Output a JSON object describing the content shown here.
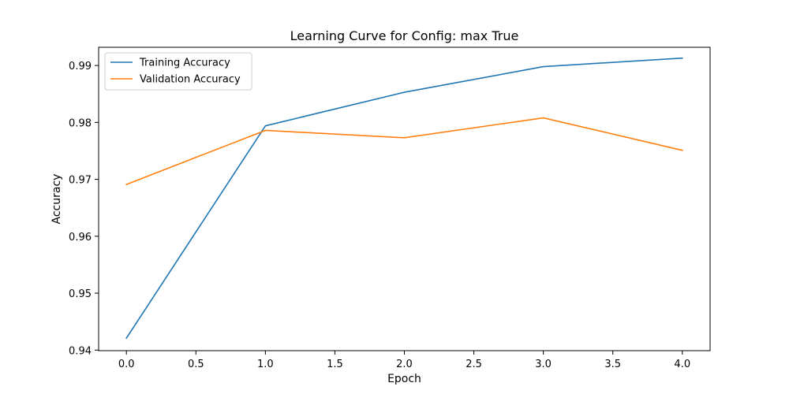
{
  "chart_data": {
    "type": "line",
    "title": "Learning Curve for Config: max True",
    "xlabel": "Epoch",
    "ylabel": "Accuracy",
    "x": [
      0,
      1,
      2,
      3,
      4
    ],
    "xlim": [
      -0.2,
      4.2
    ],
    "ylim": [
      0.9399,
      0.9932
    ],
    "xticks": [
      0.0,
      0.5,
      1.0,
      1.5,
      2.0,
      2.5,
      3.0,
      3.5,
      4.0
    ],
    "xtick_labels": [
      "0.0",
      "0.5",
      "1.0",
      "1.5",
      "2.0",
      "2.5",
      "3.0",
      "3.5",
      "4.0"
    ],
    "yticks": [
      0.94,
      0.95,
      0.96,
      0.97,
      0.98,
      0.99
    ],
    "ytick_labels": [
      "0.94",
      "0.95",
      "0.96",
      "0.97",
      "0.98",
      "0.99"
    ],
    "grid": false,
    "legend_position": "top-left",
    "series": [
      {
        "name": "Training Accuracy",
        "color": "#1f77b4",
        "values": [
          0.9421,
          0.9794,
          0.9853,
          0.9898,
          0.9913
        ]
      },
      {
        "name": "Validation Accuracy",
        "color": "#ff7f0e",
        "values": [
          0.9691,
          0.9786,
          0.9773,
          0.9808,
          0.9751
        ]
      }
    ]
  }
}
